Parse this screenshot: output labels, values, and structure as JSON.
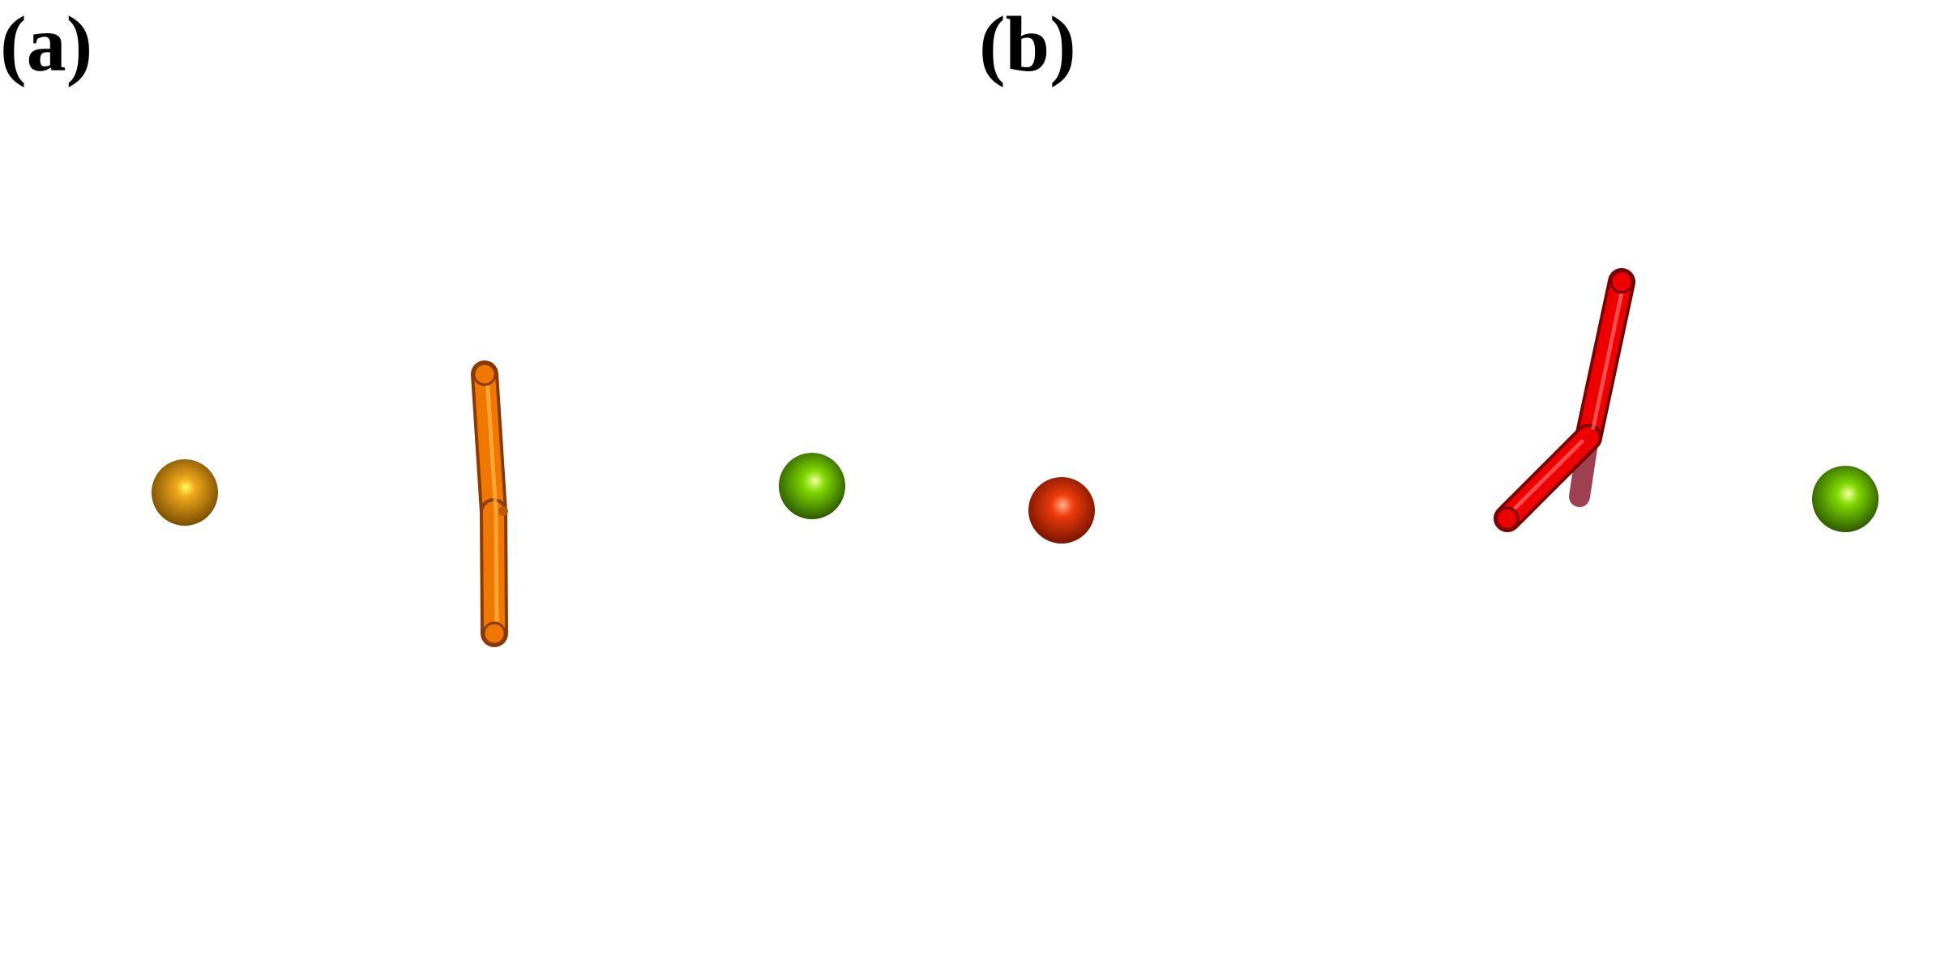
{
  "panels": {
    "a": {
      "label": "(a)",
      "atoms": [
        {
          "id": "atom-a-left",
          "color": "#f2a81c",
          "highlight": "#ffff66",
          "shade": "#7a4e00"
        },
        {
          "id": "atom-a-right",
          "color": "#7ed800",
          "highlight": "#f4ff9a",
          "shade": "#2d5a00"
        }
      ],
      "stick": {
        "id": "ligand-a",
        "color": "#f07800",
        "highlight": "#ffb84a",
        "shade": "#8a3a00"
      }
    },
    "b": {
      "label": "(b)",
      "atoms": [
        {
          "id": "atom-b-left",
          "color": "#ef3c0a",
          "highlight": "#ffb08a",
          "shade": "#7a1500"
        },
        {
          "id": "atom-b-right",
          "color": "#7ed800",
          "highlight": "#f4ff9a",
          "shade": "#2d5a00"
        }
      ],
      "stick": {
        "id": "ligand-b",
        "color": "#ee0000",
        "highlight": "#ff8080",
        "shade": "#7a0000",
        "back_color": "#9e4050"
      }
    }
  }
}
